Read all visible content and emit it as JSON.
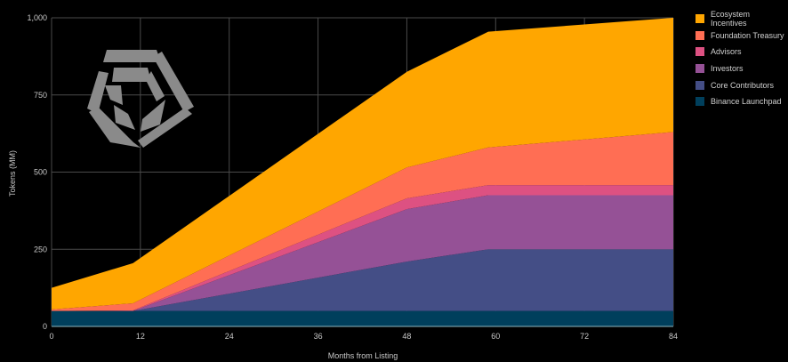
{
  "chart_data": {
    "type": "area",
    "stacked": true,
    "title": "",
    "xlabel": "Months from Listing",
    "ylabel": "Tokens (MM)",
    "x": [
      0,
      11,
      48,
      59,
      84
    ],
    "xlim": [
      0,
      84
    ],
    "ylim": [
      0,
      1000
    ],
    "xticks": [
      "0",
      "12",
      "24",
      "36",
      "48",
      "60",
      "72",
      "84"
    ],
    "xtick_values": [
      0,
      12,
      24,
      36,
      48,
      60,
      72,
      84
    ],
    "yticks": [
      "0",
      "250",
      "500",
      "750",
      "1,000"
    ],
    "ytick_values": [
      0,
      250,
      500,
      750,
      1000
    ],
    "grid": true,
    "legend_position": "right",
    "series": [
      {
        "name": "Binance Launchpad",
        "color": "#003F5C",
        "values": [
          50,
          50,
          50,
          50,
          50
        ]
      },
      {
        "name": "Core Contributors",
        "color": "#444E86",
        "values": [
          0,
          0,
          160,
          200,
          200
        ]
      },
      {
        "name": "Investors",
        "color": "#955196",
        "values": [
          0,
          0,
          170,
          175,
          175
        ]
      },
      {
        "name": "Advisors",
        "color": "#DD5182",
        "values": [
          0,
          2,
          35,
          33,
          33
        ]
      },
      {
        "name": "Foundation Treasury",
        "color": "#FF6E54",
        "values": [
          5,
          23,
          100,
          122,
          172
        ]
      },
      {
        "name": "Ecosystem Incentives",
        "color": "#FFA600",
        "values": [
          70,
          130,
          310,
          375,
          370
        ]
      }
    ]
  }
}
